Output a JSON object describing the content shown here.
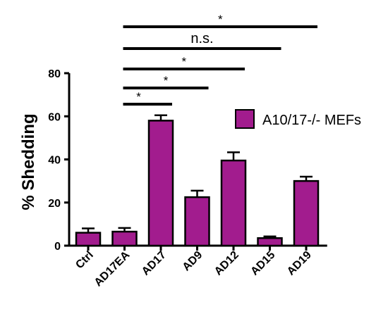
{
  "chart_data": {
    "type": "bar",
    "categories": [
      "Ctrl",
      "AD17EA",
      "AD17",
      "AD9",
      "AD12",
      "AD15",
      "AD19"
    ],
    "series": [
      {
        "name": "A10/17-/- MEFs",
        "color": "#a21c8e",
        "values": [
          6,
          6.5,
          58,
          22.5,
          39.5,
          3.5,
          30
        ],
        "errors": [
          2,
          1.7,
          2.5,
          3,
          3.8,
          0.8,
          2
        ]
      }
    ],
    "xlabel": "",
    "ylabel": "% Shedding",
    "ylim": [
      0,
      80
    ],
    "yticks": [
      0,
      20,
      40,
      60,
      80
    ],
    "legend": "right",
    "grid": false,
    "significance": [
      {
        "from": "AD17EA",
        "to": "AD19",
        "label": "*"
      },
      {
        "from": "AD17EA",
        "to": "AD15",
        "label": "n.s."
      },
      {
        "from": "AD17EA",
        "to": "AD12",
        "label": "*"
      },
      {
        "from": "AD17EA",
        "to": "AD9",
        "label": "*"
      },
      {
        "from": "AD17EA",
        "to": "AD17",
        "label": "*"
      }
    ]
  }
}
